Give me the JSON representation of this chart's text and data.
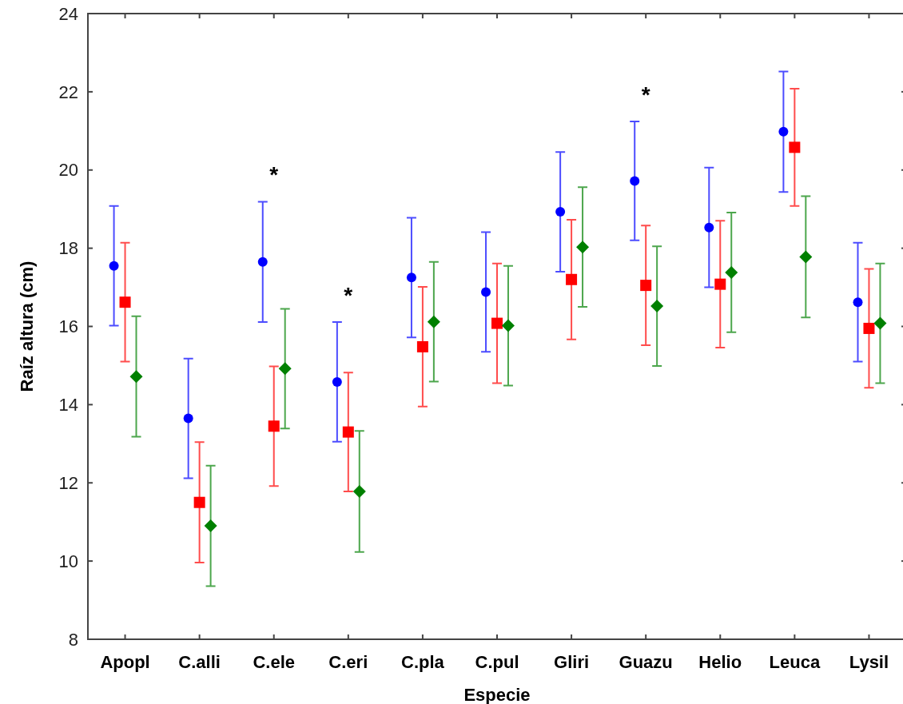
{
  "chart_data": {
    "type": "scatter",
    "xlabel": "Especie",
    "ylabel": "Raíz altura (cm)",
    "categories": [
      "Apopl",
      "C.alli",
      "C.ele",
      "C.eri",
      "C.pla",
      "C.pul",
      "Gliri",
      "Guazu",
      "Helio",
      "Leuca",
      "Lysil"
    ],
    "ylim": [
      8,
      24
    ],
    "yticks": [
      8,
      10,
      12,
      14,
      16,
      18,
      20,
      22,
      24
    ],
    "series": [
      {
        "color": "#0000ff",
        "marker": "circle",
        "values": [
          17.55,
          13.65,
          17.65,
          14.58,
          17.25,
          16.88,
          18.93,
          19.72,
          18.53,
          20.98,
          16.62
        ],
        "errors": [
          1.53,
          1.53,
          1.54,
          1.53,
          1.53,
          1.53,
          1.53,
          1.52,
          1.53,
          1.54,
          1.52
        ]
      },
      {
        "color": "#ff0000",
        "marker": "square",
        "values": [
          16.62,
          11.5,
          13.45,
          13.3,
          15.48,
          16.08,
          17.2,
          17.05,
          17.08,
          20.58,
          15.95
        ],
        "errors": [
          1.52,
          1.54,
          1.53,
          1.52,
          1.53,
          1.53,
          1.53,
          1.53,
          1.62,
          1.5,
          1.52
        ]
      },
      {
        "color": "#008000",
        "marker": "diamond",
        "values": [
          14.72,
          10.9,
          14.92,
          11.78,
          16.12,
          16.02,
          18.03,
          16.52,
          17.38,
          17.78,
          16.08
        ],
        "errors": [
          1.54,
          1.54,
          1.53,
          1.55,
          1.53,
          1.53,
          1.53,
          1.53,
          1.53,
          1.55,
          1.53
        ]
      }
    ],
    "annotations": [
      "*",
      "*",
      "*"
    ]
  }
}
